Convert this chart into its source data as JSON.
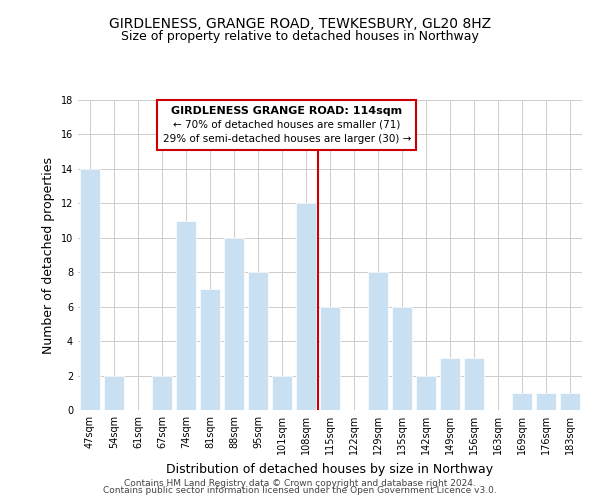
{
  "title": "GIRDLENESS, GRANGE ROAD, TEWKESBURY, GL20 8HZ",
  "subtitle": "Size of property relative to detached houses in Northway",
  "xlabel": "Distribution of detached houses by size in Northway",
  "ylabel": "Number of detached properties",
  "bar_labels": [
    "47sqm",
    "54sqm",
    "61sqm",
    "67sqm",
    "74sqm",
    "81sqm",
    "88sqm",
    "95sqm",
    "101sqm",
    "108sqm",
    "115sqm",
    "122sqm",
    "129sqm",
    "135sqm",
    "142sqm",
    "149sqm",
    "156sqm",
    "163sqm",
    "169sqm",
    "176sqm",
    "183sqm"
  ],
  "bar_values": [
    14,
    2,
    0,
    2,
    11,
    7,
    10,
    8,
    2,
    12,
    6,
    0,
    8,
    6,
    2,
    3,
    3,
    0,
    1,
    1,
    1
  ],
  "bar_color": "#c9dff2",
  "bar_edge_color": "#ffffff",
  "highlight_line_color": "#cc0000",
  "highlight_bar_index": 10,
  "ylim": [
    0,
    18
  ],
  "yticks": [
    0,
    2,
    4,
    6,
    8,
    10,
    12,
    14,
    16,
    18
  ],
  "annotation_title": "GIRDLENESS GRANGE ROAD: 114sqm",
  "annotation_line1": "← 70% of detached houses are smaller (71)",
  "annotation_line2": "29% of semi-detached houses are larger (30) →",
  "annotation_box_color": "#ffffff",
  "annotation_box_edge": "#cc0000",
  "footer_line1": "Contains HM Land Registry data © Crown copyright and database right 2024.",
  "footer_line2": "Contains public sector information licensed under the Open Government Licence v3.0.",
  "background_color": "#ffffff",
  "grid_color": "#cccccc",
  "title_fontsize": 10,
  "subtitle_fontsize": 9,
  "axis_label_fontsize": 9,
  "tick_fontsize": 7,
  "footer_fontsize": 6.5,
  "annotation_title_fontsize": 8,
  "annotation_body_fontsize": 7.5
}
